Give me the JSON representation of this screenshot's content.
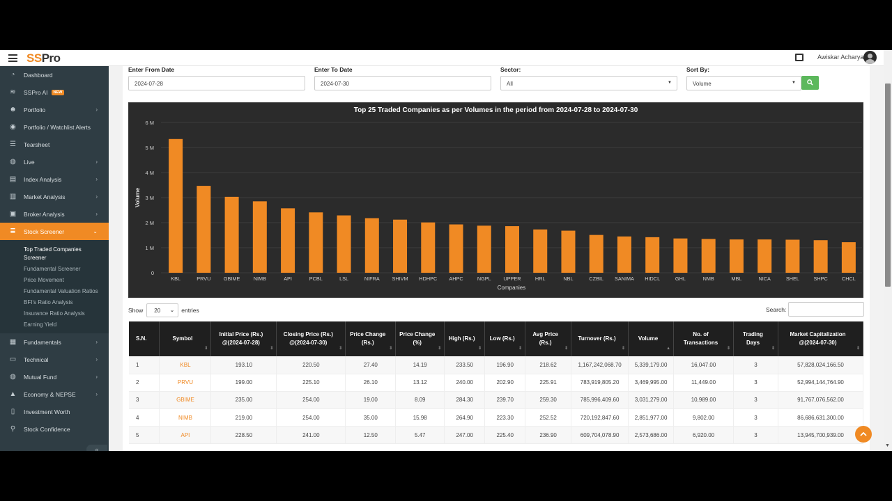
{
  "app": {
    "logo_ss": "SS",
    "logo_pro": "Pro",
    "user_name": "Awiskar Acharya"
  },
  "sidebar": {
    "items": [
      {
        "label": "Dashboard",
        "icon": "speedometer-icon",
        "glyph": "◔"
      },
      {
        "label": "SSPro AI",
        "icon": "wifi-icon",
        "glyph": "≋",
        "badge": "NEW"
      },
      {
        "label": "Portfolio",
        "icon": "users-icon",
        "glyph": "☻",
        "chevron": "›"
      },
      {
        "label": "Portfolio / Watchlist Alerts",
        "icon": "rss-icon",
        "glyph": "◉"
      },
      {
        "label": "Tearsheet",
        "icon": "list-icon",
        "glyph": "☰"
      },
      {
        "label": "Live",
        "icon": "globe-icon",
        "glyph": "◍",
        "chevron": "›"
      },
      {
        "label": "Index Analysis",
        "icon": "index-icon",
        "glyph": "▤",
        "chevron": "›"
      },
      {
        "label": "Market Analysis",
        "icon": "chart-icon",
        "glyph": "▥",
        "chevron": "›"
      },
      {
        "label": "Broker Analysis",
        "icon": "briefcase-icon",
        "glyph": "▣",
        "chevron": "›"
      },
      {
        "label": "Stock Screener",
        "icon": "filter-icon",
        "glyph": "≣",
        "chevron": "⌄"
      }
    ],
    "sub_items": [
      "Top Traded Companies Screener",
      "Fundamental Screener",
      "Price Movement",
      "Fundamental Valuation Ratios",
      "BFI's Ratio Analysis",
      "Insurance Ratio Analysis",
      "Earning Yield"
    ],
    "items_bottom": [
      {
        "label": "Fundamentals",
        "icon": "fundamentals-icon",
        "glyph": "▦",
        "chevron": "›"
      },
      {
        "label": "Technical",
        "icon": "monitor-icon",
        "glyph": "▭",
        "chevron": "›"
      },
      {
        "label": "Mutual Fund",
        "icon": "globe-icon",
        "glyph": "◍",
        "chevron": "›"
      },
      {
        "label": "Economy & NEPSE",
        "icon": "bank-icon",
        "glyph": "▲",
        "chevron": "›"
      },
      {
        "label": "Investment Worth",
        "icon": "tablet-icon",
        "glyph": "▯"
      },
      {
        "label": "Stock Confidence",
        "icon": "map-pin-icon",
        "glyph": "⚲"
      }
    ],
    "collapse": "«"
  },
  "filters": {
    "from_label": "Enter From Date",
    "from_value": "2024-07-28",
    "to_label": "Enter To Date",
    "to_value": "2024-07-30",
    "sector_label": "Sector:",
    "sector_value": "All",
    "sort_label": "Sort By:",
    "sort_value": "Volume"
  },
  "chart_data": {
    "type": "bar",
    "title": "Top 25 Traded Companies as per Volumes in the period from 2024-07-28 to 2024-07-30",
    "xlabel": "Companies",
    "ylabel": "Volume",
    "ylim": [
      0,
      6000000
    ],
    "y_ticks": [
      "0",
      "1 M",
      "2 M",
      "3 M",
      "4 M",
      "5 M",
      "6 M"
    ],
    "categories": [
      "KBL",
      "PRVU",
      "GBIME",
      "NIMB",
      "API",
      "PCBL",
      "LSL",
      "NIFRA",
      "SHIVM",
      "HDHPC",
      "AHPC",
      "NGPL",
      "UPPER",
      "HRL",
      "NBL",
      "CZBIL",
      "SANIMA",
      "HIDCL",
      "GHL",
      "NMB",
      "MBL",
      "NICA",
      "SHEL",
      "SHPC",
      "CHCL"
    ],
    "values": [
      5339179,
      3469995,
      3031279,
      2851977,
      2573686,
      2410000,
      2290000,
      2180000,
      2120000,
      2010000,
      1930000,
      1880000,
      1860000,
      1730000,
      1680000,
      1510000,
      1450000,
      1420000,
      1370000,
      1350000,
      1330000,
      1330000,
      1320000,
      1300000,
      1220000
    ],
    "bar_color": "#f08a24",
    "background": "#2b2b2b",
    "grid": true
  },
  "table_controls": {
    "show_label": "Show",
    "entries_value": "20",
    "entries_label": "entries",
    "search_label": "Search:"
  },
  "table": {
    "headers": [
      "S.N.",
      "Symbol",
      "Initial Price (Rs.) @(2024-07-28)",
      "Closing Price (Rs.) @(2024-07-30)",
      "Price Change (Rs.)",
      "Price Change (%)",
      "High (Rs.)",
      "Low (Rs.)",
      "Avg Price (Rs.)",
      "Turnover (Rs.)",
      "Volume",
      "No. of Transactions",
      "Trading Days",
      "Market Capitalization @(2024-07-30)"
    ],
    "rows": [
      [
        "1",
        "KBL",
        "193.10",
        "220.50",
        "27.40",
        "14.19",
        "233.50",
        "196.90",
        "218.62",
        "1,167,242,068.70",
        "5,339,179.00",
        "16,047.00",
        "3",
        "57,828,024,166.50"
      ],
      [
        "2",
        "PRVU",
        "199.00",
        "225.10",
        "26.10",
        "13.12",
        "240.00",
        "202.90",
        "225.91",
        "783,919,805.20",
        "3,469,995.00",
        "11,449.00",
        "3",
        "52,994,144,764.90"
      ],
      [
        "3",
        "GBIME",
        "235.00",
        "254.00",
        "19.00",
        "8.09",
        "284.30",
        "239.70",
        "259.30",
        "785,996,409.60",
        "3,031,279.00",
        "10,989.00",
        "3",
        "91,767,076,562.00"
      ],
      [
        "4",
        "NIMB",
        "219.00",
        "254.00",
        "35.00",
        "15.98",
        "264.90",
        "223.30",
        "252.52",
        "720,192,847.60",
        "2,851,977.00",
        "9,802.00",
        "3",
        "86,686,631,300.00"
      ],
      [
        "5",
        "API",
        "228.50",
        "241.00",
        "12.50",
        "5.47",
        "247.00",
        "225.40",
        "236.90",
        "609,704,078.90",
        "2,573,686.00",
        "6,920.00",
        "3",
        "13,945,700,939.00"
      ]
    ]
  }
}
